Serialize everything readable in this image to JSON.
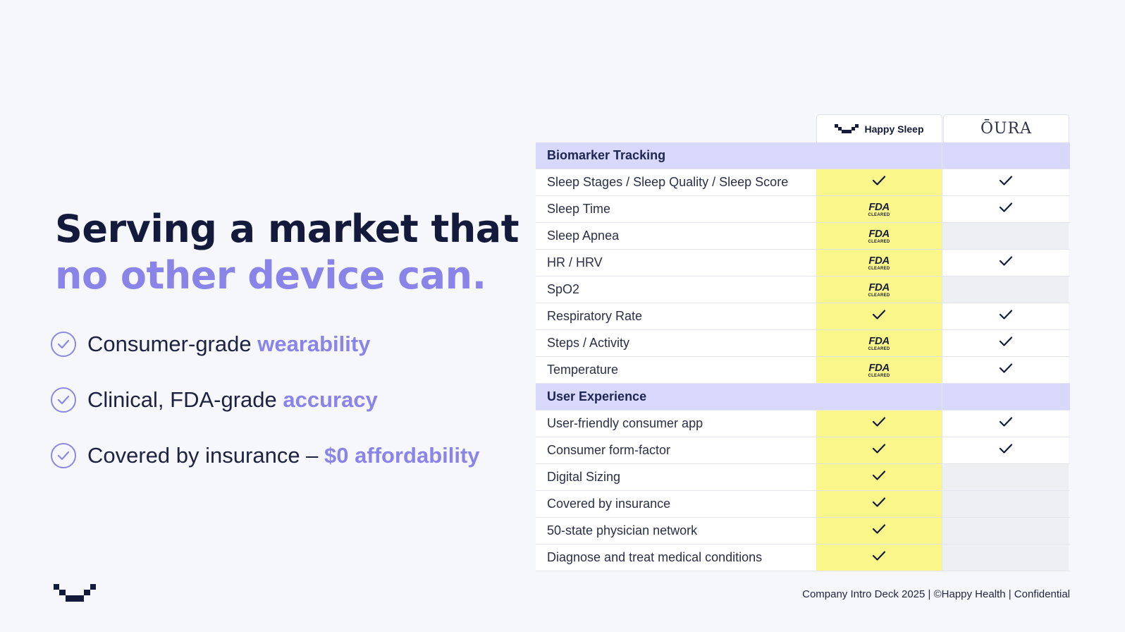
{
  "headline": {
    "line1": "Serving a market that",
    "line2": "no other device can."
  },
  "points": [
    {
      "text": "Consumer-grade ",
      "highlight": "wearability"
    },
    {
      "text": "Clinical, FDA-grade ",
      "highlight": "accuracy"
    },
    {
      "text": "Covered by insurance – ",
      "highlight": "$0 affordability"
    }
  ],
  "table": {
    "columns": [
      {
        "name": "Happy Sleep",
        "logo": "happy-sleep-logo"
      },
      {
        "name": "ŌURA",
        "logo": "oura-wordmark"
      }
    ],
    "fda_badge": {
      "main": "FDA",
      "sub": "CLEARED"
    },
    "sections": [
      {
        "title": "Biomarker Tracking",
        "rows": [
          {
            "label": "Sleep Stages / Sleep Quality / Sleep Score",
            "happy": "check",
            "oura": "check"
          },
          {
            "label": "Sleep Time",
            "happy": "fda",
            "oura": "check"
          },
          {
            "label": "Sleep Apnea",
            "happy": "fda",
            "oura": "none"
          },
          {
            "label": "HR / HRV",
            "happy": "fda",
            "oura": "check"
          },
          {
            "label": "SpO2",
            "happy": "fda",
            "oura": "none"
          },
          {
            "label": "Respiratory Rate",
            "happy": "check",
            "oura": "check"
          },
          {
            "label": "Steps / Activity",
            "happy": "fda",
            "oura": "check"
          },
          {
            "label": "Temperature",
            "happy": "fda",
            "oura": "check"
          }
        ]
      },
      {
        "title": "User Experience",
        "rows": [
          {
            "label": "User-friendly consumer app",
            "happy": "check",
            "oura": "check"
          },
          {
            "label": "Consumer form-factor",
            "happy": "check",
            "oura": "check"
          },
          {
            "label": "Digital Sizing",
            "happy": "check",
            "oura": "none"
          },
          {
            "label": "Covered by insurance",
            "happy": "check",
            "oura": "none"
          },
          {
            "label": "50-state physician network",
            "happy": "check",
            "oura": "none"
          },
          {
            "label": "Diagnose and treat medical conditions",
            "happy": "check",
            "oura": "none"
          }
        ]
      }
    ]
  },
  "footer": {
    "text": "Company Intro Deck 2025  |  ©Happy Health  |  Confidential"
  },
  "colors": {
    "accent": "#8b84e8",
    "navy": "#141a3c",
    "happy_column": "#fbf68a",
    "section_band": "#d8d8fb"
  }
}
